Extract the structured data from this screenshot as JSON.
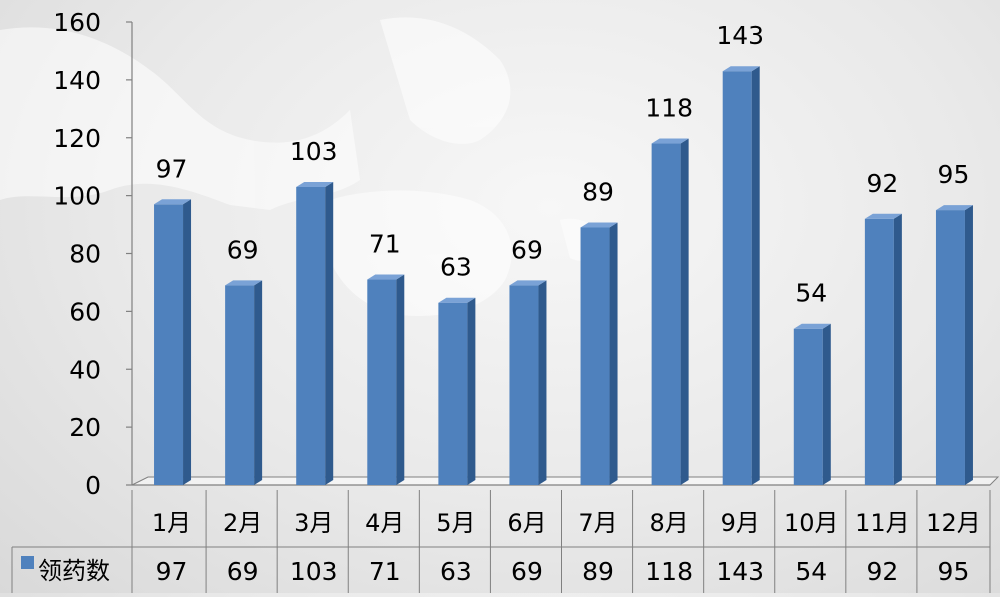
{
  "chart_data": {
    "type": "bar",
    "categories": [
      "1月",
      "2月",
      "3月",
      "4月",
      "5月",
      "6月",
      "7月",
      "8月",
      "9月",
      "10月",
      "11月",
      "12月"
    ],
    "series": [
      {
        "name": "领药数",
        "values": [
          97,
          69,
          103,
          71,
          63,
          69,
          89,
          118,
          143,
          54,
          92,
          95
        ]
      }
    ],
    "ylim": [
      0,
      160
    ],
    "yticks": [
      0,
      20,
      40,
      60,
      80,
      100,
      120,
      140,
      160
    ],
    "grid": false,
    "data_labels": true,
    "data_table": true,
    "legend": "in data table",
    "style": "3d-column"
  },
  "colors": {
    "bar_front": "#4f81bd",
    "bar_side": "#2f5a8d",
    "bar_top": "#7aa2d6",
    "axis": "#808080",
    "table_border": "#808080",
    "map_land": "#ffffff"
  }
}
